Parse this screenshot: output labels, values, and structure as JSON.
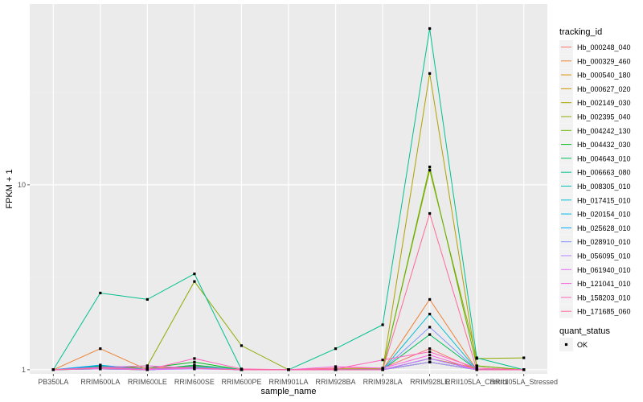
{
  "chart_data": {
    "type": "line",
    "xlabel": "sample_name",
    "ylabel": "FPKM + 1",
    "y_scale": "log10",
    "ylim": [
      0.95,
      95
    ],
    "y_ticks": [
      1,
      10
    ],
    "y_tick_labels": [
      "1",
      "10"
    ],
    "grid": true,
    "categories": [
      "PB350LA",
      "RRIM600LA",
      "RRIM600LE",
      "RRIM600SE",
      "RRIM600PE",
      "RRIM901LA",
      "RRIM928BA",
      "RRIM928LA",
      "RRIM928LE",
      "RRII105LA_Control",
      "RRII105LA_Stressed"
    ],
    "legend": {
      "title": "tracking_id",
      "position": "right"
    },
    "point_legend": {
      "title": "quant_status",
      "entries": [
        "OK"
      ]
    },
    "series": [
      {
        "name": "Hb_000248_040",
        "color": "#F8766D",
        "values": [
          1,
          1.02,
          1,
          1.02,
          1,
          1,
          1.02,
          1.02,
          1.3,
          1.0,
          1.0
        ]
      },
      {
        "name": "Hb_000329_460",
        "color": "#EC8239",
        "values": [
          1,
          1.3,
          1,
          1.05,
          1,
          1,
          1,
          1,
          2.4,
          1.0,
          1.0
        ]
      },
      {
        "name": "Hb_000540_180",
        "color": "#DB8E00",
        "values": [
          1,
          1.01,
          1,
          1.02,
          1,
          1,
          1,
          1,
          1.1,
          1.0,
          1.0
        ]
      },
      {
        "name": "Hb_000627_020",
        "color": "#C79800",
        "values": [
          1,
          1.02,
          1.02,
          1.04,
          1,
          1,
          1,
          1,
          1.15,
          1.02,
          1.0
        ]
      },
      {
        "name": "Hb_002149_030",
        "color": "#AEA200",
        "values": [
          1,
          1.01,
          1,
          1.03,
          1,
          1,
          1,
          1,
          40,
          1.05,
          1.0
        ]
      },
      {
        "name": "Hb_002395_040",
        "color": "#8FAA00",
        "values": [
          1,
          1.02,
          1.05,
          3.0,
          1.35,
          1,
          1.01,
          1.01,
          12,
          1.15,
          1.16
        ]
      },
      {
        "name": "Hb_004242_130",
        "color": "#64B200",
        "values": [
          1,
          1.03,
          1,
          1.05,
          1,
          1,
          1,
          1,
          12.5,
          1.05,
          1.0
        ]
      },
      {
        "name": "Hb_004432_030",
        "color": "#00B81B",
        "values": [
          1,
          1.05,
          1.02,
          1.1,
          1,
          1,
          1,
          1,
          1.1,
          1.0,
          1.0
        ]
      },
      {
        "name": "Hb_004643_010",
        "color": "#00BD5C",
        "values": [
          1,
          1.02,
          1,
          1.06,
          1,
          1,
          1,
          1,
          1.55,
          1.0,
          1.0
        ]
      },
      {
        "name": "Hb_006663_080",
        "color": "#00C08E",
        "values": [
          1,
          2.6,
          2.4,
          3.3,
          1.0,
          1.0,
          1.3,
          1.75,
          70,
          1.16,
          1.0
        ]
      },
      {
        "name": "Hb_008305_010",
        "color": "#00C1B7",
        "values": [
          1,
          1.02,
          1,
          1.02,
          1,
          1,
          1,
          1,
          1.1,
          1.0,
          1.0
        ]
      },
      {
        "name": "Hb_017415_010",
        "color": "#00BDD4",
        "values": [
          1,
          1.01,
          1,
          1.03,
          1,
          1,
          1,
          1,
          2.0,
          1.0,
          1.0
        ]
      },
      {
        "name": "Hb_020154_010",
        "color": "#00B5EE",
        "values": [
          1,
          1.04,
          1,
          1.02,
          1,
          1,
          1,
          1,
          1.15,
          1.0,
          1.0
        ]
      },
      {
        "name": "Hb_025628_010",
        "color": "#00A7FF",
        "values": [
          1,
          1.06,
          1,
          1.02,
          1,
          1,
          1,
          1,
          1.15,
          1.0,
          1.0
        ]
      },
      {
        "name": "Hb_028910_010",
        "color": "#7F96FF",
        "values": [
          1,
          1.02,
          1,
          1.04,
          1,
          1,
          1,
          1,
          1.7,
          1.0,
          1.0
        ]
      },
      {
        "name": "Hb_056095_010",
        "color": "#BC81FF",
        "values": [
          1,
          1.01,
          1,
          1.01,
          1,
          1,
          1,
          1,
          1.1,
          1.0,
          1.0
        ]
      },
      {
        "name": "Hb_061940_010",
        "color": "#E26EF7",
        "values": [
          1,
          1.02,
          1,
          1.02,
          1,
          1,
          1,
          1,
          1.15,
          1.0,
          1.0
        ]
      },
      {
        "name": "Hb_121041_010",
        "color": "#F863DF",
        "values": [
          1,
          1.03,
          1.05,
          1.02,
          1,
          1,
          1.04,
          1.02,
          1.2,
          1.0,
          1.0
        ]
      },
      {
        "name": "Hb_158203_010",
        "color": "#FF62BF",
        "values": [
          1,
          1.02,
          1,
          1.15,
          1.01,
          1,
          1.01,
          1.13,
          1.25,
          1.02,
          1.0
        ]
      },
      {
        "name": "Hb_171685_060",
        "color": "#FF6A98",
        "values": [
          1,
          1.02,
          1.02,
          1.02,
          1,
          1,
          1,
          1,
          7.0,
          1.0,
          1.0
        ]
      }
    ]
  }
}
